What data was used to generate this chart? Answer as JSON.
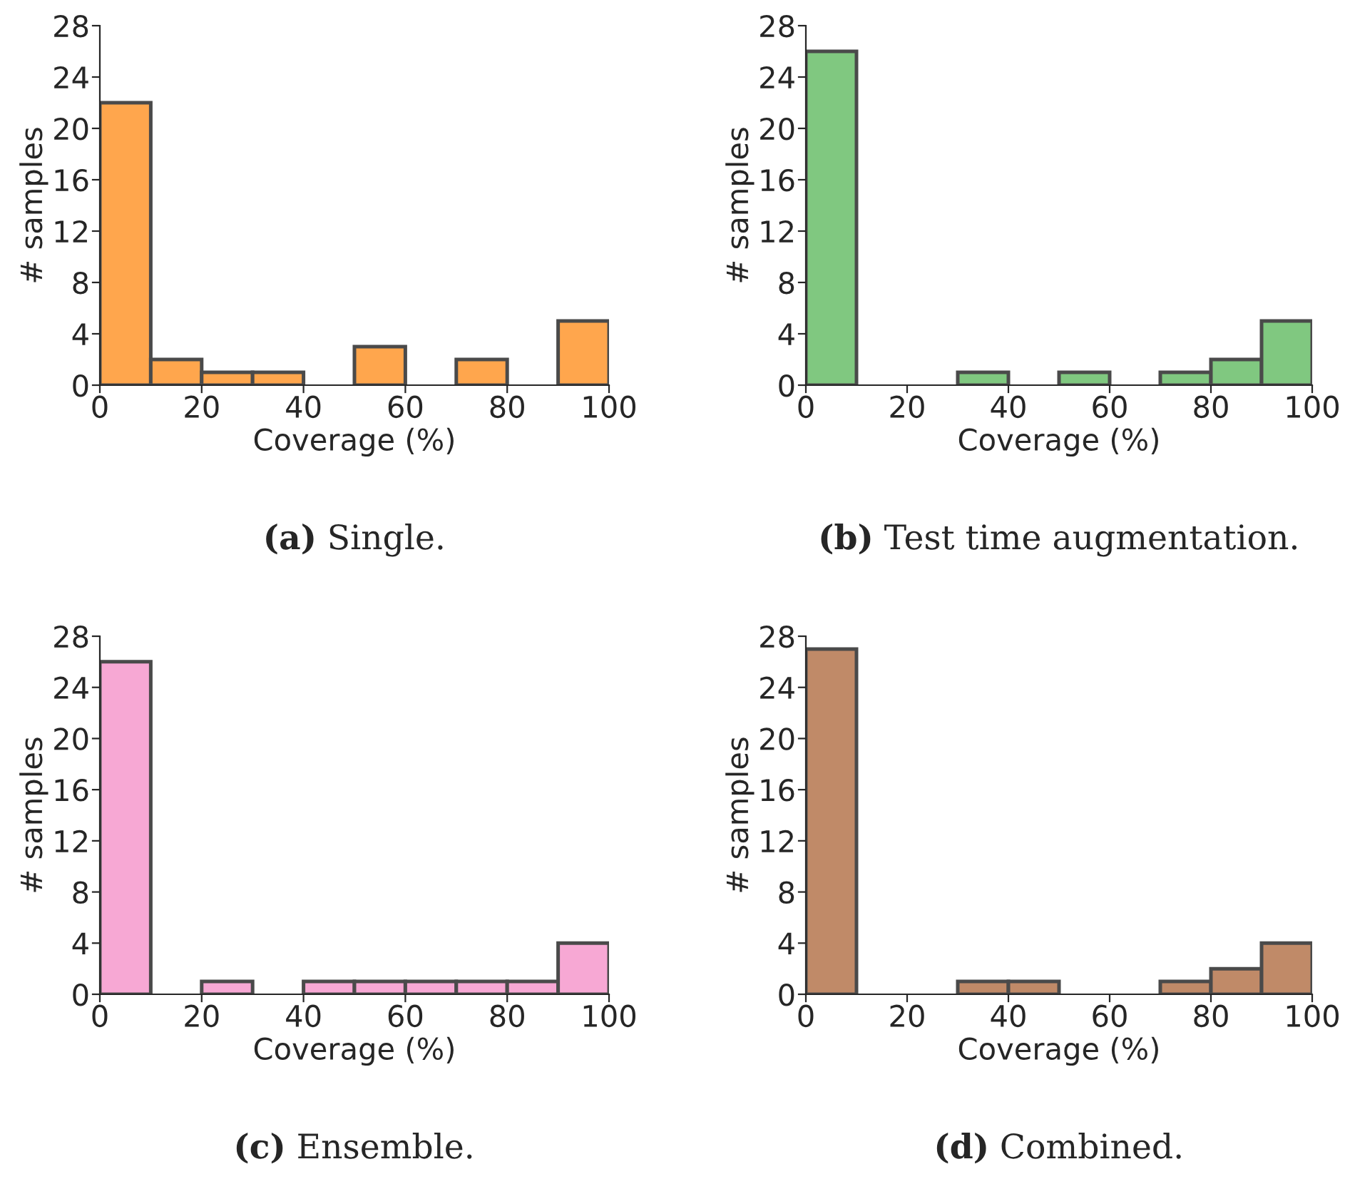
{
  "chart_data": [
    {
      "type": "histogram",
      "bins": [
        0,
        10,
        20,
        30,
        40,
        50,
        60,
        70,
        80,
        90,
        100
      ],
      "values": [
        22,
        2,
        1,
        1,
        0,
        3,
        0,
        2,
        0,
        5
      ],
      "color": "#ffa64d",
      "xlabel": "Coverage (%)",
      "ylabel": "# samples",
      "xlim": [
        0,
        100
      ],
      "xticks": [
        0,
        20,
        40,
        60,
        80,
        100
      ],
      "ylim": [
        0,
        28
      ],
      "yticks": [
        0,
        4,
        8,
        12,
        16,
        20,
        24,
        28
      ],
      "annotations": [
        "(a) Single."
      ]
    },
    {
      "type": "histogram",
      "bins": [
        0,
        10,
        20,
        30,
        40,
        50,
        60,
        70,
        80,
        90,
        100
      ],
      "values": [
        26,
        0,
        0,
        1,
        0,
        1,
        0,
        1,
        2,
        5
      ],
      "color": "#80c880",
      "xlabel": "Coverage (%)",
      "ylabel": "# samples",
      "xlim": [
        0,
        100
      ],
      "xticks": [
        0,
        20,
        40,
        60,
        80,
        100
      ],
      "ylim": [
        0,
        28
      ],
      "yticks": [
        0,
        4,
        8,
        12,
        16,
        20,
        24,
        28
      ],
      "annotations": [
        "(b) Test time augmentation."
      ]
    },
    {
      "type": "histogram",
      "bins": [
        0,
        10,
        20,
        30,
        40,
        50,
        60,
        70,
        80,
        90,
        100
      ],
      "values": [
        26,
        0,
        1,
        0,
        1,
        1,
        1,
        1,
        1,
        4
      ],
      "color": "#f7a8d4",
      "xlabel": "Coverage (%)",
      "ylabel": "# samples",
      "xlim": [
        0,
        100
      ],
      "xticks": [
        0,
        20,
        40,
        60,
        80,
        100
      ],
      "ylim": [
        0,
        28
      ],
      "yticks": [
        0,
        4,
        8,
        12,
        16,
        20,
        24,
        28
      ],
      "annotations": [
        "(c) Ensemble."
      ]
    },
    {
      "type": "histogram",
      "bins": [
        0,
        10,
        20,
        30,
        40,
        50,
        60,
        70,
        80,
        90,
        100
      ],
      "values": [
        27,
        0,
        0,
        1,
        1,
        0,
        0,
        1,
        2,
        4
      ],
      "color": "#c08a68",
      "xlabel": "Coverage (%)",
      "ylabel": "# samples",
      "xlim": [
        0,
        100
      ],
      "xticks": [
        0,
        20,
        40,
        60,
        80,
        100
      ],
      "ylim": [
        0,
        28
      ],
      "yticks": [
        0,
        4,
        8,
        12,
        16,
        20,
        24,
        28
      ],
      "annotations": [
        "(d) Combined."
      ]
    }
  ]
}
